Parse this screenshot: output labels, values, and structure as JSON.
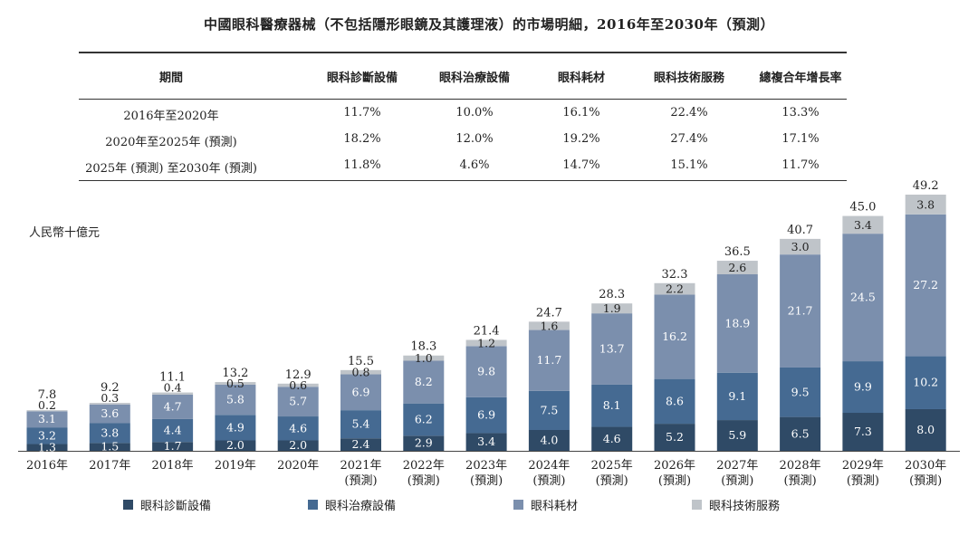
{
  "title": "中國眼科醫療器械（不包括隱形眼鏡及其護理液）的市場明細，2016年至2030年（預測）",
  "table": {
    "headers": [
      "期間",
      "眼科診斷設備",
      "眼科治療設備",
      "眼科耗材",
      "眼科技術服務",
      "總複合年增長率"
    ],
    "rows": [
      [
        "2016年至2020年",
        "11.7%",
        "10.0%",
        "16.1%",
        "22.4%",
        "13.3%"
      ],
      [
        "2020年至2025年 (預測)",
        "18.2%",
        "12.0%",
        "19.2%",
        "27.4%",
        "17.1%"
      ],
      [
        "2025年 (預測) 至2030年 (預測)",
        "11.8%",
        "4.6%",
        "14.7%",
        "15.1%",
        "11.7%"
      ]
    ]
  },
  "chart_data": {
    "type": "bar",
    "stacked": true,
    "unit_label": "人民幣十億元",
    "categories": [
      "2016年",
      "2017年",
      "2018年",
      "2019年",
      "2020年",
      "2021年",
      "2022年",
      "2023年",
      "2024年",
      "2025年",
      "2026年",
      "2027年",
      "2028年",
      "2029年",
      "2030年"
    ],
    "category_sublabels": [
      "",
      "",
      "",
      "",
      "",
      "(預測)",
      "(預測)",
      "(預測)",
      "(預測)",
      "(預測)",
      "(預測)",
      "(預測)",
      "(預測)",
      "(預測)",
      "(預測)"
    ],
    "series": [
      {
        "name": "眼科診斷設備",
        "color": "#2f4a66",
        "values": [
          1.3,
          1.5,
          1.7,
          2.0,
          2.0,
          2.4,
          2.9,
          3.4,
          4.0,
          4.6,
          5.2,
          5.9,
          6.5,
          7.3,
          8.0
        ]
      },
      {
        "name": "眼科治療設備",
        "color": "#456a92",
        "values": [
          3.2,
          3.8,
          4.4,
          4.9,
          4.6,
          5.4,
          6.2,
          6.9,
          7.5,
          8.1,
          8.6,
          9.1,
          9.5,
          9.9,
          10.2
        ]
      },
      {
        "name": "眼科耗材",
        "color": "#7b8fad",
        "values": [
          3.1,
          3.6,
          4.7,
          5.8,
          5.7,
          6.9,
          8.2,
          9.8,
          11.7,
          13.7,
          16.2,
          18.9,
          21.7,
          24.5,
          27.2
        ]
      },
      {
        "name": "眼科技術服務",
        "color": "#bfc4c9",
        "values": [
          0.2,
          0.3,
          0.4,
          0.5,
          0.6,
          0.8,
          1.0,
          1.2,
          1.6,
          1.9,
          2.2,
          2.6,
          3.0,
          3.4,
          3.8
        ]
      }
    ],
    "totals": [
      7.8,
      9.2,
      11.1,
      13.2,
      12.9,
      15.5,
      18.3,
      21.4,
      24.7,
      28.3,
      32.3,
      36.5,
      40.7,
      45.0,
      49.2
    ],
    "ylim": [
      0,
      49.2
    ],
    "grid": false,
    "legend_position": "bottom"
  }
}
